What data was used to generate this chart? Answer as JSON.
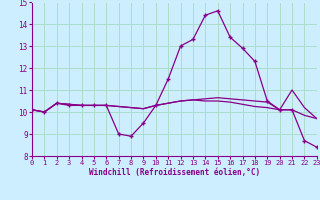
{
  "xlabel": "Windchill (Refroidissement éolien,°C)",
  "bg_color": "#cceeff",
  "line_color": "#880088",
  "grid_color": "#aaddcc",
  "x_values": [
    0,
    1,
    2,
    3,
    4,
    5,
    6,
    7,
    8,
    9,
    10,
    11,
    12,
    13,
    14,
    15,
    16,
    17,
    18,
    19,
    20,
    21,
    22,
    23
  ],
  "series1": [
    10.1,
    10.0,
    10.4,
    10.3,
    10.3,
    10.3,
    10.3,
    9.0,
    8.9,
    9.5,
    10.3,
    11.5,
    13.0,
    13.3,
    14.4,
    14.6,
    13.4,
    12.9,
    12.3,
    10.5,
    10.1,
    10.1,
    8.7,
    8.4
  ],
  "series2": [
    10.1,
    10.0,
    10.4,
    10.35,
    10.3,
    10.3,
    10.3,
    10.25,
    10.2,
    10.15,
    10.3,
    10.4,
    10.5,
    10.55,
    10.6,
    10.65,
    10.6,
    10.55,
    10.5,
    10.45,
    10.1,
    10.1,
    9.85,
    9.7
  ],
  "series3": [
    10.1,
    10.0,
    10.4,
    10.35,
    10.3,
    10.3,
    10.3,
    10.25,
    10.2,
    10.15,
    10.3,
    10.4,
    10.5,
    10.55,
    10.5,
    10.5,
    10.45,
    10.35,
    10.25,
    10.2,
    10.1,
    11.0,
    10.2,
    9.7
  ],
  "ylim": [
    8,
    15
  ],
  "yticks": [
    8,
    9,
    10,
    11,
    12,
    13,
    14,
    15
  ],
  "xlim": [
    0,
    23
  ],
  "xticks": [
    0,
    1,
    2,
    3,
    4,
    5,
    6,
    7,
    8,
    9,
    10,
    11,
    12,
    13,
    14,
    15,
    16,
    17,
    18,
    19,
    20,
    21,
    22,
    23
  ]
}
